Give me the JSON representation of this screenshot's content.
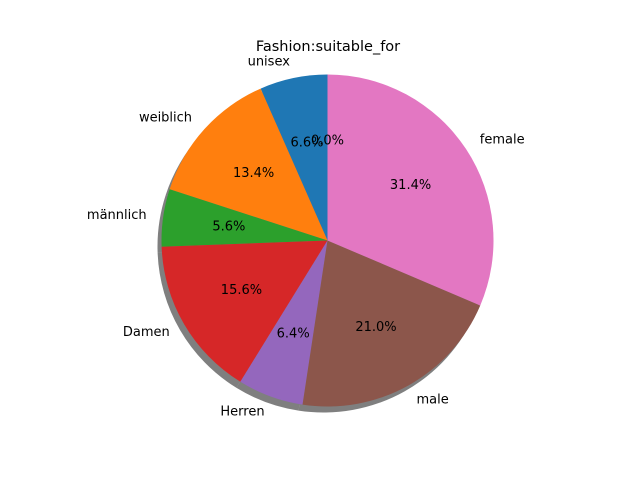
{
  "chart_data": {
    "type": "pie",
    "title": "Fashion:suitable_for",
    "shadow": true,
    "start_angle_deg": 90,
    "direction": "counterclockwise",
    "slices": [
      {
        "label": "unisex",
        "value": 6.6,
        "pct_label": "6.6%",
        "color": "#1f77b4"
      },
      {
        "label": "weiblich",
        "value": 13.4,
        "pct_label": "13.4%",
        "color": "#ff7f0e"
      },
      {
        "label": "männlich",
        "value": 5.6,
        "pct_label": "5.6%",
        "color": "#2ca02c"
      },
      {
        "label": "Damen",
        "value": 15.6,
        "pct_label": "15.6%",
        "color": "#d62728"
      },
      {
        "label": "Herren",
        "value": 6.4,
        "pct_label": "6.4%",
        "color": "#9467bd"
      },
      {
        "label": "male",
        "value": 21.0,
        "pct_label": "21.0%",
        "color": "#8c564b"
      },
      {
        "label": "female",
        "value": 31.4,
        "pct_label": "31.4%",
        "color": "#e377c2"
      },
      {
        "label": "",
        "value": 0.0,
        "pct_label": "0.0%",
        "color": "#7f7f7f"
      }
    ]
  }
}
